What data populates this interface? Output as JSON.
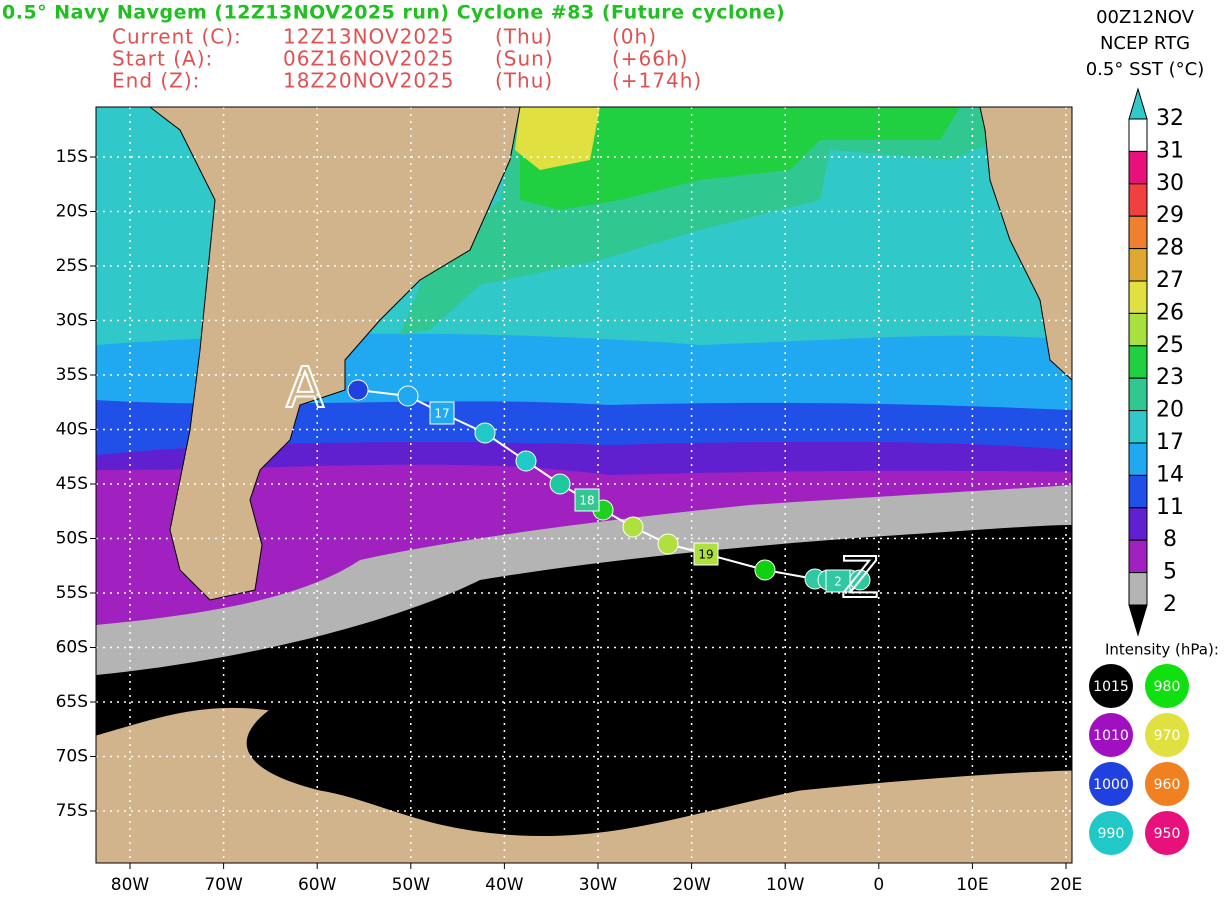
{
  "header": {
    "title": "0.5° Navy Navgem (12Z13NOV2025 run) Cyclone #83 (Future cyclone)",
    "lines": [
      [
        "Current (C):",
        "12Z13NOV2025",
        "(Thu)",
        "(0h)"
      ],
      [
        "Start (A):",
        "06Z16NOV2025",
        "(Sun)",
        "(+66h)"
      ],
      [
        "End (Z):",
        "18Z20NOV2025",
        "(Thu)",
        "(+174h)"
      ]
    ]
  },
  "top_right": [
    "00Z12NOV",
    "NCEP RTG",
    "0.5° SST (°C)"
  ],
  "colorbar": {
    "labels": [
      "32",
      "31",
      "30",
      "29",
      "28",
      "27",
      "26",
      "25",
      "23",
      "20",
      "17",
      "14",
      "11",
      "8",
      "5",
      "2"
    ],
    "colors": [
      "#ffffff",
      "#e8107a",
      "#f04040",
      "#f08030",
      "#e0a830",
      "#e0e040",
      "#a8e040",
      "#20d040",
      "#30c890",
      "#30c8c8",
      "#20a8f0",
      "#2050e8",
      "#6020d0",
      "#a020c0",
      "#b4b4b4"
    ],
    "over_color": "#30c8c8",
    "under_color": "#000000"
  },
  "intensity": {
    "title": "Intensity (hPa):",
    "items": [
      {
        "label": "1015",
        "color": "#000000"
      },
      {
        "label": "980",
        "color": "#10e010"
      },
      {
        "label": "1010",
        "color": "#a010c0"
      },
      {
        "label": "970",
        "color": "#e0e040"
      },
      {
        "label": "1000",
        "color": "#2040e0"
      },
      {
        "label": "960",
        "color": "#f08020"
      },
      {
        "label": "990",
        "color": "#20c8c8"
      },
      {
        "label": "950",
        "color": "#e8107a"
      }
    ]
  },
  "map": {
    "x_labels": [
      "80W",
      "70W",
      "60W",
      "50W",
      "40W",
      "30W",
      "20W",
      "10W",
      "0",
      "10E",
      "20E"
    ],
    "y_labels": [
      "15S",
      "20S",
      "25S",
      "30S",
      "35S",
      "40S",
      "45S",
      "50S",
      "55S",
      "60S",
      "65S",
      "70S",
      "75S"
    ],
    "track_labels": [
      "17",
      "18",
      "19",
      "2"
    ],
    "start": "A",
    "end": "Z"
  }
}
